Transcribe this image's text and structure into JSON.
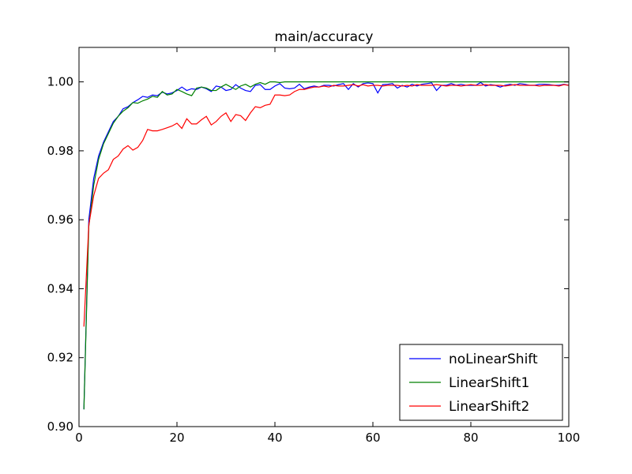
{
  "chart_data": {
    "type": "line",
    "title": "main/accuracy",
    "xlabel": "",
    "ylabel": "",
    "xlim": [
      0,
      100
    ],
    "ylim": [
      0.9,
      1.01
    ],
    "xticks": [
      0,
      20,
      40,
      60,
      80,
      100
    ],
    "yticks": [
      0.9,
      0.92,
      0.94,
      0.96,
      0.98,
      1.0
    ],
    "xtick_labels": [
      "0",
      "20",
      "40",
      "60",
      "80",
      "100"
    ],
    "ytick_labels": [
      "0.90",
      "0.92",
      "0.94",
      "0.96",
      "0.98",
      "1.00"
    ],
    "grid": false,
    "legend_position": "lower-right",
    "x": [
      1,
      2,
      3,
      4,
      5,
      6,
      7,
      8,
      9,
      10,
      11,
      12,
      13,
      14,
      15,
      16,
      17,
      18,
      19,
      20,
      21,
      22,
      23,
      24,
      25,
      26,
      27,
      28,
      29,
      30,
      31,
      32,
      33,
      34,
      35,
      36,
      37,
      38,
      39,
      40,
      41,
      42,
      43,
      44,
      45,
      46,
      47,
      48,
      49,
      50,
      51,
      52,
      53,
      54,
      55,
      56,
      57,
      58,
      59,
      60,
      61,
      62,
      63,
      64,
      65,
      66,
      67,
      68,
      69,
      70,
      71,
      72,
      73,
      74,
      75,
      76,
      77,
      78,
      79,
      80,
      81,
      82,
      83,
      84,
      85,
      86,
      87,
      88,
      89,
      90,
      91,
      92,
      93,
      94,
      95,
      96,
      97,
      98,
      99,
      100
    ],
    "series": [
      {
        "name": "noLinearShift",
        "color": "#0000ff",
        "values": [
          0.905,
          0.96,
          0.972,
          0.9785,
          0.9825,
          0.9855,
          0.9885,
          0.99,
          0.9922,
          0.9928,
          0.994,
          0.9948,
          0.9958,
          0.9955,
          0.9962,
          0.996,
          0.997,
          0.9965,
          0.9968,
          0.9975,
          0.9985,
          0.9975,
          0.998,
          0.9978,
          0.9985,
          0.998,
          0.9972,
          0.9988,
          0.9985,
          0.9975,
          0.9978,
          0.9992,
          0.9982,
          0.9975,
          0.9972,
          0.999,
          0.9992,
          0.9978,
          0.9978,
          0.9988,
          0.9995,
          0.9982,
          0.998,
          0.9982,
          0.9993,
          0.998,
          0.9985,
          0.9988,
          0.9985,
          0.999,
          0.999,
          0.9988,
          0.9992,
          0.9995,
          0.9978,
          0.9995,
          0.9985,
          0.9995,
          0.9997,
          0.9995,
          0.9968,
          0.9992,
          0.9993,
          0.9995,
          0.9982,
          0.999,
          0.9985,
          0.9993,
          0.9988,
          0.9993,
          0.9995,
          0.9997,
          0.9975,
          0.999,
          0.999,
          0.9995,
          0.999,
          0.9993,
          0.999,
          0.999,
          0.999,
          0.9998,
          0.9988,
          0.9992,
          0.999,
          0.9985,
          0.999,
          0.9993,
          0.999,
          0.9995,
          0.9993,
          0.999,
          0.999,
          0.9993,
          0.9993,
          0.9992,
          0.999,
          0.999,
          0.9993,
          0.999
        ]
      },
      {
        "name": "LinearShift1",
        "color": "#008000",
        "values": [
          0.905,
          0.958,
          0.97,
          0.9775,
          0.982,
          0.985,
          0.988,
          0.99,
          0.9915,
          0.9925,
          0.994,
          0.9938,
          0.9945,
          0.995,
          0.9958,
          0.9955,
          0.9972,
          0.9962,
          0.9965,
          0.9978,
          0.9972,
          0.9965,
          0.996,
          0.9982,
          0.9985,
          0.9982,
          0.9975,
          0.9975,
          0.9985,
          0.9993,
          0.9985,
          0.9978,
          0.9988,
          0.9993,
          0.9985,
          0.9993,
          0.9998,
          0.9993,
          1.0,
          1.0,
          0.9998,
          1.0,
          1.0,
          1.0,
          1.0,
          1.0,
          1.0,
          1.0,
          1.0,
          1.0,
          1.0,
          1.0,
          1.0,
          1.0,
          1.0,
          1.0,
          1.0,
          1.0,
          1.0,
          1.0,
          1.0,
          1.0,
          1.0,
          1.0,
          1.0,
          1.0,
          1.0,
          1.0,
          1.0,
          1.0,
          1.0,
          1.0,
          1.0,
          1.0,
          1.0,
          1.0,
          1.0,
          1.0,
          1.0,
          1.0,
          1.0,
          1.0,
          1.0,
          1.0,
          1.0,
          1.0,
          1.0,
          1.0,
          1.0,
          1.0,
          1.0,
          1.0,
          1.0,
          1.0,
          1.0,
          1.0,
          1.0,
          1.0,
          1.0,
          1.0
        ]
      },
      {
        "name": "LinearShift2",
        "color": "#ff0000",
        "values": [
          0.929,
          0.9585,
          0.967,
          0.972,
          0.9735,
          0.9745,
          0.9775,
          0.9785,
          0.9805,
          0.9815,
          0.9802,
          0.981,
          0.983,
          0.9862,
          0.9858,
          0.9858,
          0.9862,
          0.9867,
          0.9872,
          0.988,
          0.9865,
          0.9893,
          0.9878,
          0.9878,
          0.989,
          0.99,
          0.9875,
          0.9885,
          0.99,
          0.991,
          0.9885,
          0.9905,
          0.9902,
          0.9888,
          0.991,
          0.9928,
          0.9925,
          0.9932,
          0.9935,
          0.9962,
          0.9962,
          0.996,
          0.9962,
          0.9972,
          0.9978,
          0.9978,
          0.9982,
          0.9985,
          0.9985,
          0.9988,
          0.9985,
          0.999,
          0.9988,
          0.9988,
          0.999,
          0.9992,
          0.9988,
          0.9992,
          0.9988,
          0.999,
          0.999,
          0.9988,
          0.999,
          0.999,
          0.999,
          0.9988,
          0.999,
          0.9988,
          0.9992,
          0.999,
          0.999,
          0.999,
          0.9992,
          0.999,
          0.9988,
          0.999,
          0.999,
          0.9988,
          0.999,
          0.9992,
          0.999,
          0.999,
          0.9992,
          0.999,
          0.999,
          0.999,
          0.9988,
          0.999,
          0.9992,
          0.999,
          0.999,
          0.999,
          0.999,
          0.9988,
          0.999,
          0.999,
          0.999,
          0.9988,
          0.9992,
          0.999
        ]
      }
    ]
  }
}
